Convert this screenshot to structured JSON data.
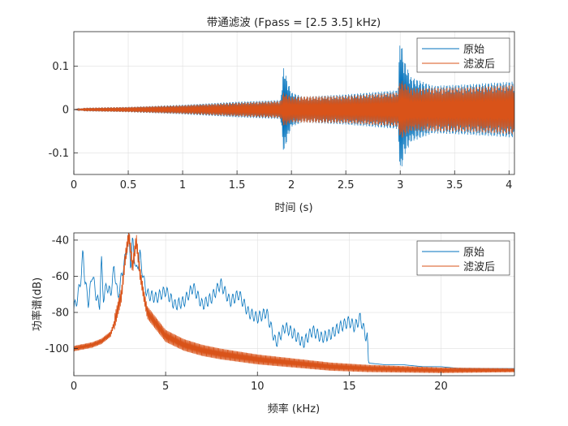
{
  "colors": {
    "original": "#0072BD",
    "filtered": "#D95319",
    "grid": "#DFDFDF",
    "axis": "#262626"
  },
  "chart_data": [
    {
      "type": "line",
      "title": "带通滤波  (Fpass = [2.5 3.5] kHz)",
      "xlabel": "时间 (s)",
      "ylabel": "",
      "xlim": [
        0,
        4.05
      ],
      "ylim": [
        -0.15,
        0.18
      ],
      "xticks": [
        0,
        0.5,
        1,
        1.5,
        2,
        2.5,
        3,
        3.5,
        4
      ],
      "xtick_labels": [
        "0",
        "0.5",
        "1",
        "1.5",
        "2",
        "2.5",
        "3",
        "3.5",
        "4"
      ],
      "yticks": [
        -0.1,
        0,
        0.1
      ],
      "ytick_labels": [
        "-0.1",
        "0",
        "0.1"
      ],
      "grid": true,
      "legend": "top-right",
      "series": [
        {
          "name": "原始",
          "envelope_upper": [
            [
              0,
              0
            ],
            [
              0.05,
              0.002
            ],
            [
              0.1,
              0.004
            ],
            [
              0.5,
              0.006
            ],
            [
              1.0,
              0.011
            ],
            [
              1.5,
              0.018
            ],
            [
              1.9,
              0.022
            ],
            [
              1.93,
              0.1
            ],
            [
              1.96,
              0.07
            ],
            [
              2.0,
              0.04
            ],
            [
              2.1,
              0.03
            ],
            [
              2.5,
              0.035
            ],
            [
              2.98,
              0.045
            ],
            [
              3.0,
              0.18
            ],
            [
              3.03,
              0.12
            ],
            [
              3.1,
              0.075
            ],
            [
              3.3,
              0.055
            ],
            [
              3.6,
              0.058
            ],
            [
              4.05,
              0.065
            ]
          ],
          "envelope_lower": [
            [
              0,
              0
            ],
            [
              0.05,
              -0.002
            ],
            [
              0.1,
              -0.004
            ],
            [
              0.5,
              -0.006
            ],
            [
              1.0,
              -0.011
            ],
            [
              1.5,
              -0.018
            ],
            [
              1.9,
              -0.022
            ],
            [
              1.93,
              -0.105
            ],
            [
              1.96,
              -0.07
            ],
            [
              2.0,
              -0.04
            ],
            [
              2.1,
              -0.03
            ],
            [
              2.5,
              -0.035
            ],
            [
              2.98,
              -0.045
            ],
            [
              3.0,
              -0.16
            ],
            [
              3.03,
              -0.11
            ],
            [
              3.1,
              -0.075
            ],
            [
              3.3,
              -0.055
            ],
            [
              3.6,
              -0.058
            ],
            [
              4.05,
              -0.065
            ]
          ]
        },
        {
          "name": "滤波后",
          "envelope_upper": [
            [
              0,
              0
            ],
            [
              0.05,
              0.002
            ],
            [
              0.1,
              0.004
            ],
            [
              0.5,
              0.006
            ],
            [
              1.0,
              0.01
            ],
            [
              1.5,
              0.016
            ],
            [
              1.9,
              0.02
            ],
            [
              1.93,
              0.04
            ],
            [
              2.0,
              0.03
            ],
            [
              2.5,
              0.032
            ],
            [
              2.98,
              0.04
            ],
            [
              3.0,
              0.07
            ],
            [
              3.1,
              0.05
            ],
            [
              3.6,
              0.052
            ],
            [
              4.05,
              0.058
            ]
          ],
          "envelope_lower": [
            [
              0,
              0
            ],
            [
              0.05,
              -0.002
            ],
            [
              0.1,
              -0.004
            ],
            [
              0.5,
              -0.006
            ],
            [
              1.0,
              -0.01
            ],
            [
              1.5,
              -0.016
            ],
            [
              1.9,
              -0.02
            ],
            [
              1.93,
              -0.04
            ],
            [
              2.0,
              -0.03
            ],
            [
              2.5,
              -0.032
            ],
            [
              2.98,
              -0.04
            ],
            [
              3.0,
              -0.07
            ],
            [
              3.1,
              -0.05
            ],
            [
              3.6,
              -0.052
            ],
            [
              4.05,
              -0.058
            ]
          ]
        }
      ]
    },
    {
      "type": "line",
      "title": "",
      "xlabel": "频率 (kHz)",
      "ylabel": "功率谱(dB)",
      "xlim": [
        0,
        24
      ],
      "ylim": [
        -115,
        -36
      ],
      "xticks": [
        0,
        5,
        10,
        15,
        20
      ],
      "xtick_labels": [
        "0",
        "5",
        "10",
        "15",
        "20"
      ],
      "yticks": [
        -100,
        -80,
        -60,
        -40
      ],
      "ytick_labels": [
        "-100",
        "-80",
        "-60",
        "-40"
      ],
      "grid": true,
      "legend": "top-right",
      "series": [
        {
          "name": "原始",
          "x": [
            0,
            0.2,
            0.4,
            0.5,
            0.6,
            0.8,
            1.0,
            1.2,
            1.4,
            1.5,
            1.6,
            1.8,
            2.0,
            2.2,
            2.4,
            2.6,
            2.8,
            3.0,
            3.1,
            3.2,
            3.4,
            3.6,
            3.8,
            4.0,
            4.5,
            5.0,
            5.5,
            6.0,
            6.5,
            7.0,
            7.5,
            8.0,
            8.5,
            9.0,
            9.5,
            10.0,
            10.5,
            11.0,
            11.5,
            12.0,
            12.5,
            13.0,
            13.5,
            14.0,
            14.5,
            15.0,
            15.3,
            15.6,
            15.9,
            16.0,
            16.05,
            17,
            18,
            19,
            20,
            21,
            22,
            23,
            24
          ],
          "y": [
            -78,
            -72,
            -60,
            -46,
            -62,
            -75,
            -58,
            -70,
            -77,
            -50,
            -72,
            -65,
            -70,
            -55,
            -72,
            -60,
            -50,
            -37,
            -55,
            -40,
            -58,
            -48,
            -62,
            -70,
            -72,
            -68,
            -76,
            -74,
            -66,
            -76,
            -72,
            -64,
            -74,
            -70,
            -80,
            -83,
            -80,
            -97,
            -88,
            -92,
            -97,
            -90,
            -94,
            -92,
            -88,
            -85,
            -88,
            -83,
            -93,
            -94,
            -108,
            -109,
            -109,
            -110,
            -110,
            -111,
            -111,
            -111,
            -111
          ]
        },
        {
          "name": "滤波后",
          "x": [
            0,
            1,
            1.5,
            2.0,
            2.2,
            2.4,
            2.6,
            2.8,
            3.0,
            3.2,
            3.4,
            3.6,
            3.8,
            4.0,
            5,
            6,
            7,
            8,
            10,
            12,
            14,
            16,
            18,
            20,
            22,
            24
          ],
          "y": [
            -100,
            -98,
            -96,
            -92,
            -86,
            -78,
            -70,
            -50,
            -37,
            -55,
            -40,
            -58,
            -70,
            -80,
            -93,
            -98,
            -101,
            -103,
            -106,
            -108,
            -110,
            -111,
            -111.5,
            -112,
            -112,
            -112
          ]
        }
      ]
    }
  ]
}
